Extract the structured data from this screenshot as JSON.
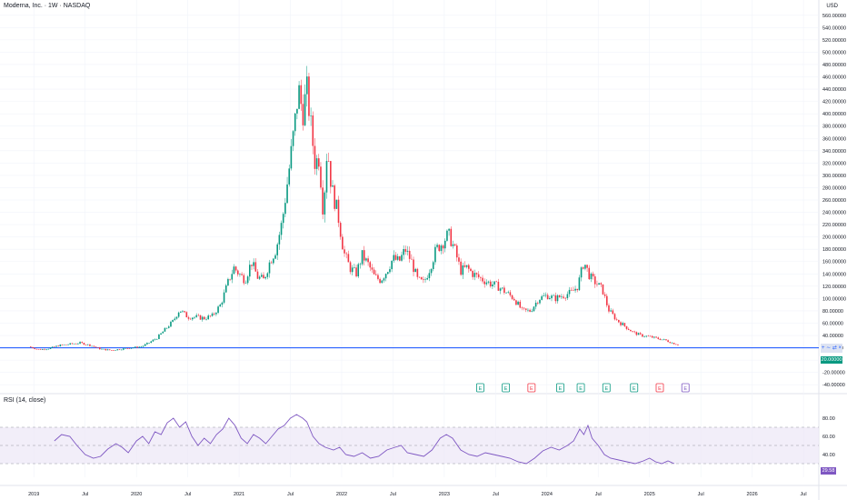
{
  "header": {
    "title": "Moderna, Inc. · 1W · NASDAQ",
    "currency": "USD",
    "rsi_title": "RSI (14, close)"
  },
  "badges": {
    "last_price": "20.00000",
    "tool_glyphs": "+ ∼ ⇄ ×",
    "rsi_value": "29.58"
  },
  "colors": {
    "up": "#089981",
    "down": "#f23645",
    "hline": "#2962ff",
    "rsi": "#7e57c2",
    "rsi_band": "#ede7f6",
    "grid": "#f0f3fa",
    "earnings_up": "#089981",
    "earnings_down": "#f23645",
    "earnings_upcoming": "#7e57c2"
  },
  "chart_data": [
    {
      "type": "candlestick",
      "title": "Moderna, Inc. · 1W · NASDAQ",
      "ylabel": "USD",
      "xlim": [
        2018.67,
        2026.65
      ],
      "ylim": [
        -50,
        570
      ],
      "y_ticks": [
        "-40.00000",
        "-20.00000",
        "0.00000",
        "20.00000",
        "40.00000",
        "60.00000",
        "80.00000",
        "100.00000",
        "120.00000",
        "140.00000",
        "160.00000",
        "180.00000",
        "200.00000",
        "220.00000",
        "240.00000",
        "260.00000",
        "280.00000",
        "300.00000",
        "320.00000",
        "340.00000",
        "360.00000",
        "380.00000",
        "400.00000",
        "420.00000",
        "440.00000",
        "460.00000",
        "480.00000",
        "500.00000",
        "520.00000",
        "540.00000",
        "560.00000"
      ],
      "x_ticks": [
        "2019",
        "Jul",
        "2020",
        "Jul",
        "2021",
        "Jul",
        "2022",
        "Jul",
        "2023",
        "Jul",
        "2024",
        "Jul",
        "2025",
        "Jul",
        "2026",
        "Jul"
      ],
      "horizontal_line": 20,
      "close_path": [
        [
          2018.95,
          22
        ],
        [
          2019.05,
          17
        ],
        [
          2019.15,
          19
        ],
        [
          2019.25,
          24
        ],
        [
          2019.35,
          26
        ],
        [
          2019.45,
          28
        ],
        [
          2019.55,
          24
        ],
        [
          2019.65,
          18
        ],
        [
          2019.75,
          16
        ],
        [
          2019.85,
          18
        ],
        [
          2019.95,
          20
        ],
        [
          2020.05,
          22
        ],
        [
          2020.12,
          28
        ],
        [
          2020.2,
          36
        ],
        [
          2020.28,
          50
        ],
        [
          2020.36,
          64
        ],
        [
          2020.42,
          82
        ],
        [
          2020.5,
          70
        ],
        [
          2020.58,
          70
        ],
        [
          2020.66,
          68
        ],
        [
          2020.74,
          72
        ],
        [
          2020.82,
          90
        ],
        [
          2020.9,
          130
        ],
        [
          2020.95,
          150
        ],
        [
          2021.0,
          140
        ],
        [
          2021.06,
          130
        ],
        [
          2021.12,
          160
        ],
        [
          2021.18,
          135
        ],
        [
          2021.24,
          130
        ],
        [
          2021.3,
          160
        ],
        [
          2021.36,
          180
        ],
        [
          2021.42,
          225
        ],
        [
          2021.48,
          300
        ],
        [
          2021.54,
          380
        ],
        [
          2021.58,
          440
        ],
        [
          2021.62,
          400
        ],
        [
          2021.66,
          440
        ],
        [
          2021.7,
          380
        ],
        [
          2021.74,
          320
        ],
        [
          2021.78,
          330
        ],
        [
          2021.82,
          240
        ],
        [
          2021.86,
          350
        ],
        [
          2021.9,
          280
        ],
        [
          2021.96,
          240
        ],
        [
          2022.02,
          175
        ],
        [
          2022.08,
          150
        ],
        [
          2022.14,
          140
        ],
        [
          2022.2,
          170
        ],
        [
          2022.26,
          155
        ],
        [
          2022.32,
          135
        ],
        [
          2022.38,
          130
        ],
        [
          2022.44,
          145
        ],
        [
          2022.5,
          165
        ],
        [
          2022.56,
          160
        ],
        [
          2022.62,
          180
        ],
        [
          2022.68,
          160
        ],
        [
          2022.74,
          130
        ],
        [
          2022.8,
          125
        ],
        [
          2022.86,
          150
        ],
        [
          2022.92,
          180
        ],
        [
          2022.98,
          190
        ],
        [
          2023.04,
          205
        ],
        [
          2023.1,
          180
        ],
        [
          2023.16,
          145
        ],
        [
          2023.22,
          150
        ],
        [
          2023.28,
          140
        ],
        [
          2023.36,
          132
        ],
        [
          2023.44,
          125
        ],
        [
          2023.52,
          120
        ],
        [
          2023.6,
          110
        ],
        [
          2023.68,
          100
        ],
        [
          2023.76,
          80
        ],
        [
          2023.84,
          80
        ],
        [
          2023.92,
          100
        ],
        [
          2024.0,
          105
        ],
        [
          2024.08,
          100
        ],
        [
          2024.16,
          105
        ],
        [
          2024.24,
          110
        ],
        [
          2024.3,
          120
        ],
        [
          2024.36,
          160
        ],
        [
          2024.42,
          135
        ],
        [
          2024.48,
          125
        ],
        [
          2024.54,
          115
        ],
        [
          2024.6,
          82
        ],
        [
          2024.68,
          65
        ],
        [
          2024.76,
          55
        ],
        [
          2024.84,
          45
        ],
        [
          2024.92,
          40
        ],
        [
          2025.0,
          38
        ],
        [
          2025.08,
          35
        ],
        [
          2025.16,
          32
        ],
        [
          2025.22,
          28
        ],
        [
          2025.28,
          25
        ]
      ],
      "earnings_markers": [
        {
          "x": 2023.35,
          "label": "E",
          "status": "beat"
        },
        {
          "x": 2023.6,
          "label": "E",
          "status": "beat"
        },
        {
          "x": 2023.85,
          "label": "E",
          "status": "miss"
        },
        {
          "x": 2024.13,
          "label": "E",
          "status": "beat"
        },
        {
          "x": 2024.33,
          "label": "E",
          "status": "beat"
        },
        {
          "x": 2024.58,
          "label": "E",
          "status": "beat"
        },
        {
          "x": 2024.85,
          "label": "E",
          "status": "beat"
        },
        {
          "x": 2025.1,
          "label": "E",
          "status": "miss"
        },
        {
          "x": 2025.35,
          "label": "E",
          "status": "upcoming"
        }
      ]
    },
    {
      "type": "line",
      "title": "RSI (14, close)",
      "ylim": [
        15,
        90
      ],
      "y_ticks": [
        "20.00",
        "40.00",
        "60.00",
        "80.00"
      ],
      "bands": [
        30,
        50,
        70
      ],
      "series": [
        {
          "name": "RSI (14, close)",
          "points": [
            [
              2019.2,
              55
            ],
            [
              2019.27,
              62
            ],
            [
              2019.35,
              60
            ],
            [
              2019.42,
              50
            ],
            [
              2019.5,
              40
            ],
            [
              2019.58,
              36
            ],
            [
              2019.65,
              38
            ],
            [
              2019.72,
              46
            ],
            [
              2019.8,
              52
            ],
            [
              2019.86,
              48
            ],
            [
              2019.92,
              42
            ],
            [
              2020.0,
              55
            ],
            [
              2020.06,
              60
            ],
            [
              2020.12,
              52
            ],
            [
              2020.18,
              65
            ],
            [
              2020.24,
              62
            ],
            [
              2020.3,
              75
            ],
            [
              2020.36,
              80
            ],
            [
              2020.42,
              70
            ],
            [
              2020.48,
              76
            ],
            [
              2020.54,
              60
            ],
            [
              2020.6,
              50
            ],
            [
              2020.66,
              58
            ],
            [
              2020.72,
              52
            ],
            [
              2020.78,
              62
            ],
            [
              2020.84,
              68
            ],
            [
              2020.9,
              80
            ],
            [
              2020.96,
              72
            ],
            [
              2021.02,
              58
            ],
            [
              2021.08,
              52
            ],
            [
              2021.14,
              62
            ],
            [
              2021.2,
              58
            ],
            [
              2021.26,
              52
            ],
            [
              2021.32,
              60
            ],
            [
              2021.38,
              68
            ],
            [
              2021.44,
              72
            ],
            [
              2021.5,
              80
            ],
            [
              2021.56,
              84
            ],
            [
              2021.62,
              80
            ],
            [
              2021.66,
              76
            ],
            [
              2021.72,
              60
            ],
            [
              2021.78,
              52
            ],
            [
              2021.84,
              48
            ],
            [
              2021.92,
              45
            ],
            [
              2021.98,
              48
            ],
            [
              2022.04,
              40
            ],
            [
              2022.12,
              38
            ],
            [
              2022.2,
              42
            ],
            [
              2022.28,
              36
            ],
            [
              2022.36,
              38
            ],
            [
              2022.44,
              45
            ],
            [
              2022.52,
              48
            ],
            [
              2022.58,
              50
            ],
            [
              2022.64,
              42
            ],
            [
              2022.72,
              40
            ],
            [
              2022.8,
              38
            ],
            [
              2022.88,
              45
            ],
            [
              2022.96,
              58
            ],
            [
              2023.02,
              62
            ],
            [
              2023.08,
              58
            ],
            [
              2023.16,
              45
            ],
            [
              2023.24,
              40
            ],
            [
              2023.32,
              38
            ],
            [
              2023.4,
              42
            ],
            [
              2023.48,
              40
            ],
            [
              2023.56,
              38
            ],
            [
              2023.64,
              36
            ],
            [
              2023.72,
              32
            ],
            [
              2023.8,
              30
            ],
            [
              2023.88,
              36
            ],
            [
              2023.96,
              44
            ],
            [
              2024.04,
              48
            ],
            [
              2024.12,
              45
            ],
            [
              2024.2,
              50
            ],
            [
              2024.26,
              55
            ],
            [
              2024.32,
              68
            ],
            [
              2024.36,
              62
            ],
            [
              2024.4,
              72
            ],
            [
              2024.44,
              58
            ],
            [
              2024.5,
              50
            ],
            [
              2024.56,
              40
            ],
            [
              2024.62,
              36
            ],
            [
              2024.7,
              34
            ],
            [
              2024.78,
              32
            ],
            [
              2024.86,
              30
            ],
            [
              2024.94,
              33
            ],
            [
              2025.0,
              36
            ],
            [
              2025.06,
              32
            ],
            [
              2025.12,
              30
            ],
            [
              2025.18,
              33
            ],
            [
              2025.24,
              30
            ]
          ]
        }
      ]
    }
  ]
}
